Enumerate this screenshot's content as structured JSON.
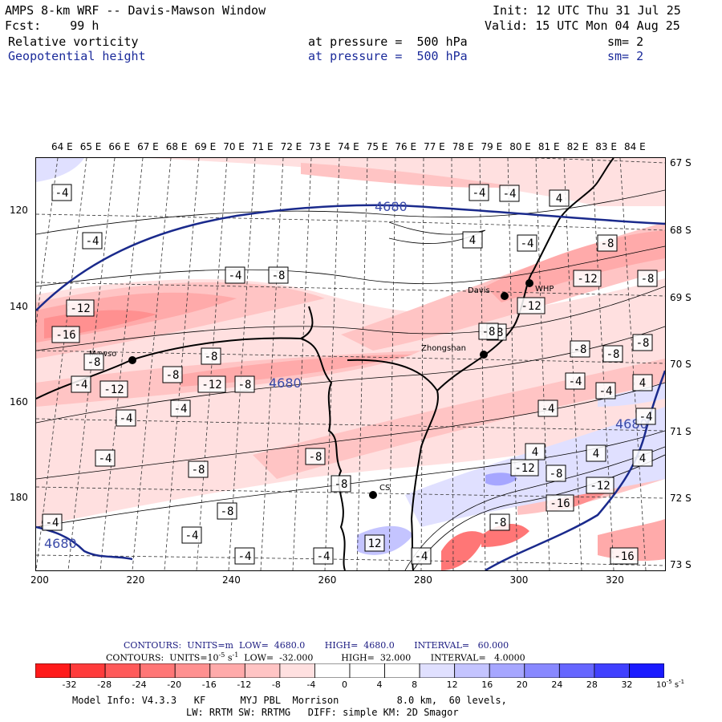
{
  "header": {
    "title": "AMPS 8-km WRF -- Davis-Mawson Window",
    "init": "Init: 12 UTC Thu 31 Jul 25",
    "fcst": "Fcst:    99 h",
    "valid": "Valid: 15 UTC Mon 04 Aug 25",
    "field1": {
      "name": "Relative vorticity",
      "level": "at pressure =  500 hPa",
      "sm": "sm= 2"
    },
    "field2": {
      "name": "Geopotential height",
      "level": "at pressure =  500 hPa",
      "sm": "sm= 2"
    }
  },
  "longitude_labels": [
    "64 E",
    "65 E",
    "66 E",
    "67 E",
    "68 E",
    "69 E",
    "70 E",
    "71 E",
    "72 E",
    "73 E",
    "74 E",
    "75 E",
    "76 E",
    "77 E",
    "78 E",
    "79 E",
    "80 E",
    "81 E",
    "82 E",
    "83 E",
    "84 E"
  ],
  "latitude_labels": [
    "67 S",
    "68 S",
    "69 S",
    "70 S",
    "71 S",
    "72 S",
    "73 S"
  ],
  "y_axis_labels": [
    "120",
    "140",
    "160",
    "180"
  ],
  "x_axis_labels": [
    "200",
    "220",
    "240",
    "260",
    "280",
    "300",
    "320"
  ],
  "stations": [
    {
      "name": "Mawso",
      "label": "Mawso"
    },
    {
      "name": "Davis",
      "label": "Davis"
    },
    {
      "name": "WHP",
      "label": "WHP"
    },
    {
      "name": "Zhongshan",
      "label": "Zhongshan"
    },
    {
      "name": "CS",
      "label": "CS"
    }
  ],
  "height_labels": [
    "4680",
    "4680",
    "4680",
    "4680"
  ],
  "vorticity_labels": [
    "-4",
    "-8",
    "-12",
    "-16",
    "4",
    "8",
    "12"
  ],
  "contour_notes": {
    "line1": "CONTOURS:  UNITS=m  LOW=  4680.0       HIGH=  4680.0       INTERVAL=   60.000",
    "line2_prefix": "CONTOURS:  UNITS=10",
    "line2_exp": "-5",
    "line2_unit": " s",
    "line2_unit_exp": "-1",
    "line2_rest": "  LOW=  -32.000          HIGH=  32.000       INTERVAL=   4.0000"
  },
  "colorbar": {
    "ticks": [
      "-32",
      "-28",
      "-24",
      "-20",
      "-16",
      "-12",
      "-8",
      "-4",
      "0",
      "4",
      "8",
      "12",
      "16",
      "20",
      "24",
      "28",
      "32"
    ],
    "units": "10",
    "units_exp": "-5",
    "units_tail": " s",
    "units_tail_exp": "-1",
    "colors": [
      "#ff1a1a",
      "#ff3b3b",
      "#ff5a5a",
      "#ff7676",
      "#ff9090",
      "#ffaaaa",
      "#ffc4c4",
      "#ffe0e0",
      "#ffffff",
      "#ffffff",
      "#e0e0ff",
      "#c4c4ff",
      "#a6a6ff",
      "#8888ff",
      "#6666ff",
      "#4040ff",
      "#1a1aff"
    ]
  },
  "model_info": {
    "line1": "Model Info: V4.3.3   KF      MYJ PBL  Morrison          8.0 km,  60 levels,",
    "line2": "LW: RRTM SW: RRTMG   DIFF: simple KM: 2D Smagor"
  }
}
